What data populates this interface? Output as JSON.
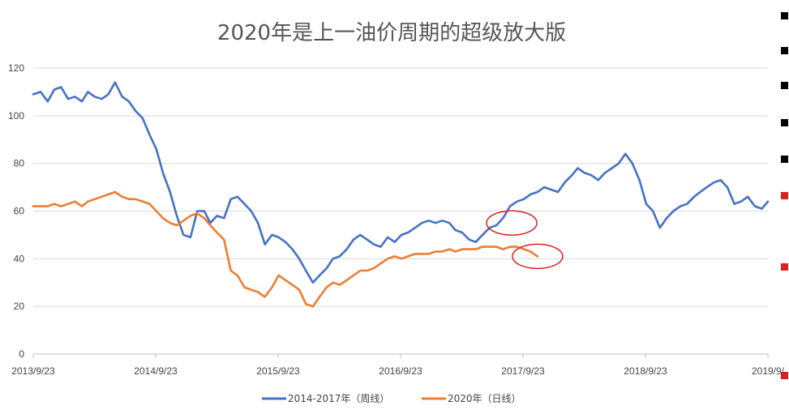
{
  "chart_data": {
    "type": "line",
    "title": "2020年是上一油价周期的超级放大版",
    "xlabel": "",
    "ylabel": "",
    "ylim": [
      0,
      120
    ],
    "yticks": [
      0,
      20,
      40,
      60,
      80,
      100,
      120
    ],
    "xlim": [
      "2013-09-23",
      "2019-09-23"
    ],
    "xticks": [
      "2013/9/23",
      "2014/9/23",
      "2015/9/23",
      "2016/9/23",
      "2017/9/23",
      "2018/9/23",
      "2019/9/"
    ],
    "grid": "horizontal",
    "legend_position": "bottom",
    "series": [
      {
        "name": "2014-2017年（周线）",
        "color": "#4472C4",
        "x": [
          "2013-09-23",
          "2013-10-15",
          "2013-11-05",
          "2013-11-25",
          "2013-12-15",
          "2014-01-05",
          "2014-01-25",
          "2014-02-15",
          "2014-03-05",
          "2014-03-25",
          "2014-04-15",
          "2014-05-05",
          "2014-05-25",
          "2014-06-15",
          "2014-07-05",
          "2014-07-25",
          "2014-08-15",
          "2014-09-05",
          "2014-09-25",
          "2014-10-15",
          "2014-11-05",
          "2014-11-25",
          "2014-12-15",
          "2015-01-05",
          "2015-01-25",
          "2015-02-15",
          "2015-03-05",
          "2015-03-25",
          "2015-04-15",
          "2015-05-05",
          "2015-05-25",
          "2015-06-15",
          "2015-07-05",
          "2015-07-25",
          "2015-08-15",
          "2015-09-05",
          "2015-09-25",
          "2015-10-15",
          "2015-11-05",
          "2015-11-25",
          "2015-12-15",
          "2016-01-05",
          "2016-01-25",
          "2016-02-15",
          "2016-03-05",
          "2016-03-25",
          "2016-04-15",
          "2016-05-05",
          "2016-05-25",
          "2016-06-15",
          "2016-07-05",
          "2016-07-25",
          "2016-08-15",
          "2016-09-05",
          "2016-09-25",
          "2016-10-15",
          "2016-11-05",
          "2016-11-25",
          "2016-12-15",
          "2017-01-05",
          "2017-01-25",
          "2017-02-15",
          "2017-03-05",
          "2017-03-25",
          "2017-04-15",
          "2017-05-05",
          "2017-05-25",
          "2017-06-15",
          "2017-07-05",
          "2017-07-25",
          "2017-08-15",
          "2017-09-05",
          "2017-09-25",
          "2017-10-15",
          "2017-11-05",
          "2017-11-25",
          "2017-12-15",
          "2018-01-05",
          "2018-01-25",
          "2018-02-15",
          "2018-03-05",
          "2018-03-25",
          "2018-04-15",
          "2018-05-05",
          "2018-05-25",
          "2018-06-15",
          "2018-07-05",
          "2018-07-25",
          "2018-08-15",
          "2018-09-05",
          "2018-09-25",
          "2018-10-15",
          "2018-11-05",
          "2018-11-25",
          "2018-12-15",
          "2019-01-05",
          "2019-01-25",
          "2019-02-15",
          "2019-03-05",
          "2019-03-25",
          "2019-04-15",
          "2019-05-05",
          "2019-05-25",
          "2019-06-15",
          "2019-07-05",
          "2019-07-25",
          "2019-08-15",
          "2019-09-05",
          "2019-09-23"
        ],
        "values": [
          109,
          110,
          106,
          111,
          112,
          107,
          108,
          106,
          110,
          108,
          107,
          109,
          114,
          108,
          106,
          102,
          99,
          92,
          86,
          76,
          68,
          58,
          50,
          49,
          60,
          60,
          55,
          58,
          57,
          65,
          66,
          63,
          60,
          55,
          46,
          50,
          49,
          47,
          44,
          40,
          35,
          30,
          33,
          36,
          40,
          41,
          44,
          48,
          50,
          48,
          46,
          45,
          49,
          47,
          50,
          51,
          53,
          55,
          56,
          55,
          56,
          55,
          52,
          51,
          48,
          47,
          50,
          53,
          54,
          57,
          62,
          64,
          65,
          67,
          68,
          70,
          69,
          68,
          72,
          75,
          78,
          76,
          75,
          73,
          76,
          78,
          80,
          84,
          80,
          73,
          63,
          60,
          53,
          57,
          60,
          62,
          63,
          66,
          68,
          70,
          72,
          73,
          70,
          63,
          64,
          66,
          62,
          61,
          64
        ]
      },
      {
        "name": "2020年（日线）",
        "color": "#ED7D31",
        "x": [
          "2013-09-23",
          "2013-10-15",
          "2013-11-05",
          "2013-11-25",
          "2013-12-15",
          "2014-01-05",
          "2014-01-25",
          "2014-02-15",
          "2014-03-05",
          "2014-03-25",
          "2014-04-15",
          "2014-05-05",
          "2014-05-25",
          "2014-06-15",
          "2014-07-05",
          "2014-07-25",
          "2014-08-15",
          "2014-09-05",
          "2014-09-25",
          "2014-10-15",
          "2014-11-05",
          "2014-11-25",
          "2014-12-15",
          "2015-01-05",
          "2015-01-25",
          "2015-02-15",
          "2015-03-05",
          "2015-03-25",
          "2015-04-15",
          "2015-05-05",
          "2015-05-25",
          "2015-06-15",
          "2015-07-05",
          "2015-07-25",
          "2015-08-15",
          "2015-09-05",
          "2015-09-25",
          "2015-10-15",
          "2015-11-05",
          "2015-11-25",
          "2015-12-15",
          "2016-01-05",
          "2016-01-25",
          "2016-02-15",
          "2016-03-05",
          "2016-03-25",
          "2016-04-15",
          "2016-05-05",
          "2016-05-25",
          "2016-06-15",
          "2016-07-05",
          "2016-07-25",
          "2016-08-15",
          "2016-09-05",
          "2016-09-25",
          "2016-10-15",
          "2016-11-05",
          "2016-11-25",
          "2016-12-15",
          "2017-01-05",
          "2017-01-25",
          "2017-02-15",
          "2017-03-05",
          "2017-03-25",
          "2017-04-15",
          "2017-05-05",
          "2017-05-25",
          "2017-06-15",
          "2017-07-05",
          "2017-07-25",
          "2017-08-15",
          "2017-09-05",
          "2017-09-25",
          "2017-10-15",
          "2017-11-05"
        ],
        "values": [
          62,
          62,
          62,
          63,
          62,
          63,
          64,
          62,
          64,
          65,
          66,
          67,
          68,
          66,
          65,
          65,
          64,
          63,
          60,
          57,
          55,
          54,
          56,
          58,
          59,
          57,
          54,
          51,
          48,
          35,
          33,
          28,
          27,
          26,
          24,
          28,
          33,
          31,
          29,
          27,
          21,
          20,
          24,
          28,
          30,
          29,
          31,
          33,
          35,
          35,
          36,
          38,
          40,
          41,
          40,
          41,
          42,
          42,
          42,
          43,
          43,
          44,
          43,
          44,
          44,
          44,
          45,
          45,
          45,
          44,
          45,
          45,
          44,
          43,
          41
        ]
      }
    ],
    "annotations": [
      {
        "shape": "ellipse",
        "color": "#E02020",
        "x_center": "2017-08-20",
        "y_center": 55
      },
      {
        "shape": "ellipse",
        "color": "#E02020",
        "x_center": "2017-11-05",
        "y_center": 41
      }
    ]
  },
  "side_marks": [
    {
      "color": "#000000"
    },
    {
      "color": "#000000"
    },
    {
      "color": "#000000"
    },
    {
      "color": "#000000"
    },
    {
      "color": "#000000"
    },
    {
      "color": "#E02020"
    },
    {
      "color": "#E02020"
    },
    {
      "color": "#E02020"
    }
  ]
}
